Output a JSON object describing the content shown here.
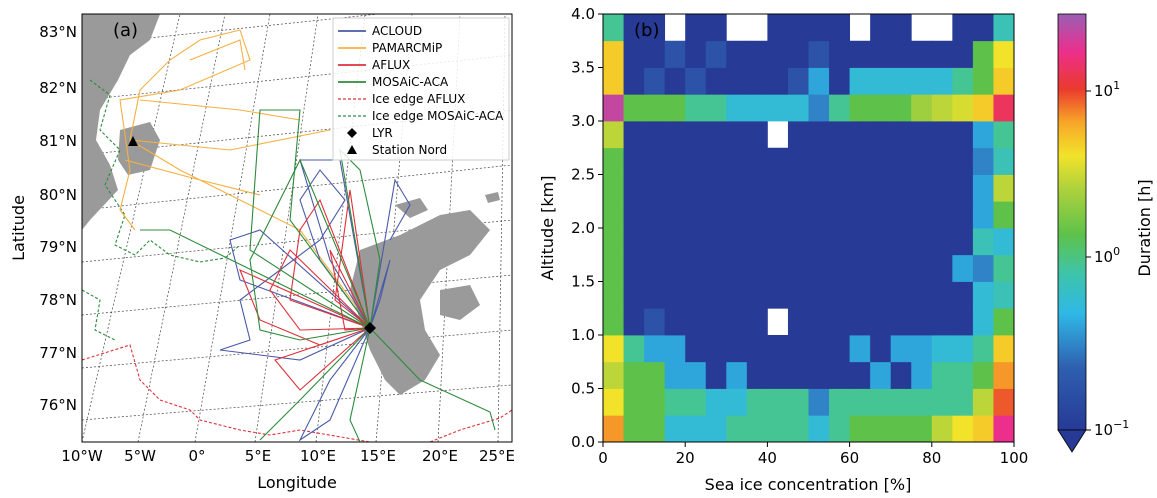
{
  "chart_data": [
    {
      "type": "map",
      "panel_label": "(a)",
      "xlabel": "Longitude",
      "ylabel": "Latitude",
      "lon_ticks": [
        "10°W",
        "5°W",
        "0°",
        "5°E",
        "10°E",
        "15°E",
        "20°E",
        "25°E"
      ],
      "lat_ticks": [
        "76°N",
        "77°N",
        "78°N",
        "79°N",
        "80°N",
        "81°N",
        "82°N",
        "83°N"
      ],
      "legend_position": "top-right",
      "legend": [
        {
          "label": "ACLOUD",
          "style": "line",
          "color": "#4a5aa8"
        },
        {
          "label": "PAMARCMiP",
          "style": "line",
          "color": "#f5b041"
        },
        {
          "label": "AFLUX",
          "style": "line",
          "color": "#e0303a"
        },
        {
          "label": "MOSAiC-ACA",
          "style": "line",
          "color": "#2e8b3d"
        },
        {
          "label": "Ice edge AFLUX",
          "style": "dashed",
          "color": "#e0303a"
        },
        {
          "label": "Ice edge MOSAiC-ACA",
          "style": "dashed",
          "color": "#2e8b3d"
        },
        {
          "label": "LYR",
          "style": "diamond",
          "color": "#000000"
        },
        {
          "label": "Station Nord",
          "style": "triangle",
          "color": "#000000"
        }
      ],
      "markers": [
        {
          "name": "LYR",
          "lon": 15.5,
          "lat": 78.2
        },
        {
          "name": "Station Nord",
          "lon": -16.7,
          "lat": 81.6
        }
      ]
    },
    {
      "type": "heatmap",
      "panel_label": "(b)",
      "xlabel": "Sea ice concentration [%]",
      "ylabel": "Altitude [km]",
      "colorbar_label": "Duration [h]",
      "colorbar_ticks": [
        "10^{-1}",
        "10^{0}",
        "10^{1}"
      ],
      "color_scale": "log",
      "xlim": [
        0,
        100
      ],
      "ylim": [
        0.0,
        4.0
      ],
      "x_ticks": [
        0,
        20,
        40,
        60,
        80,
        100
      ],
      "y_ticks": [
        0.0,
        0.5,
        1.0,
        1.5,
        2.0,
        2.5,
        3.0,
        3.5,
        4.0
      ],
      "bin_width_x": 5,
      "bin_height_y": 0.25,
      "grid_note": "rows listed bottom (0.0-0.25 km) to top (3.75-4.0 km); columns 0-5% to 95-100%; values are log10(duration h); null = no data",
      "cells_log10": [
        [
          0.8,
          0.0,
          0.0,
          -0.4,
          -0.4,
          -0.4,
          -0.2,
          -0.2,
          -0.2,
          -0.2,
          -0.4,
          -0.2,
          0.0,
          0.0,
          0.0,
          0.0,
          0.3,
          0.5,
          0.6,
          1.3
        ],
        [
          0.5,
          0.0,
          0.0,
          -0.2,
          -0.2,
          -0.4,
          -0.4,
          -0.2,
          -0.2,
          -0.2,
          -0.6,
          -0.2,
          -0.2,
          -0.2,
          -0.2,
          -0.2,
          -0.2,
          -0.2,
          0.3,
          1.0
        ],
        [
          0.3,
          0.0,
          0.0,
          -0.5,
          -0.5,
          -1,
          -0.5,
          -1,
          -1,
          -1,
          -1,
          -1,
          -1,
          -0.5,
          -1,
          -0.5,
          -0.2,
          -0.2,
          0.0,
          0.8
        ],
        [
          0.5,
          -0.2,
          -0.5,
          -0.5,
          -1,
          -1,
          -1,
          -1,
          -1,
          -1,
          -1,
          -1,
          -0.5,
          -1,
          -0.5,
          -0.5,
          -0.4,
          -0.4,
          -0.2,
          0.6
        ],
        [
          0.0,
          -1,
          -0.8,
          -1,
          -1,
          -1,
          -1,
          -1,
          null,
          -1,
          -1,
          -1,
          -1,
          -1,
          -1,
          -1,
          -1,
          -1,
          -0.4,
          0.0
        ],
        [
          0.0,
          -1,
          -1,
          -1,
          -1,
          -1,
          -1,
          -1,
          -1,
          -1,
          -1,
          -1,
          -1,
          -1,
          -1,
          -1,
          -1,
          -1,
          -0.4,
          -0.3
        ],
        [
          0.0,
          -1,
          -1,
          -1,
          -1,
          -1,
          -1,
          -1,
          -1,
          -1,
          -1,
          -1,
          -1,
          -1,
          -1,
          -1,
          -1,
          -0.5,
          -0.6,
          -0.2
        ],
        [
          0.0,
          -1,
          -1,
          -1,
          -1,
          -1,
          -1,
          -1,
          -1,
          -1,
          -1,
          -1,
          -1,
          -1,
          -1,
          -1,
          -1,
          -1,
          -0.3,
          -0.4
        ],
        [
          0.0,
          -1,
          -1,
          -1,
          -1,
          -1,
          -1,
          -1,
          -1,
          -1,
          -1,
          -1,
          -1,
          -1,
          -1,
          -1,
          -1,
          -1,
          -0.5,
          0.0
        ],
        [
          0.0,
          -1,
          -1,
          -1,
          -1,
          -1,
          -1,
          -1,
          -1,
          -1,
          -1,
          -1,
          -1,
          -1,
          -1,
          -1,
          -1,
          -1,
          -0.5,
          0.3
        ],
        [
          0.0,
          -1,
          -1,
          -1,
          -1,
          -1,
          -1,
          -1,
          -1,
          -1,
          -1,
          -1,
          -1,
          -1,
          -1,
          -1,
          -1,
          -1,
          -0.6,
          -0.3
        ],
        [
          0.3,
          -1,
          -1,
          -1,
          -1,
          -1,
          -1,
          -1,
          null,
          -1,
          -1,
          -1,
          -1,
          -1,
          -1,
          -1,
          -1,
          -1,
          -0.5,
          -0.2
        ],
        [
          1.4,
          0.0,
          0.0,
          0.0,
          -0.2,
          -0.2,
          -0.4,
          -0.4,
          -0.4,
          -0.4,
          -0.6,
          -0.2,
          0.0,
          0.0,
          0.0,
          0.2,
          0.3,
          0.4,
          0.6,
          1.2
        ],
        [
          0.6,
          -1,
          -0.8,
          -1,
          -0.8,
          -1,
          -1,
          -1,
          -1,
          -0.8,
          -0.5,
          -1,
          -0.4,
          -0.4,
          -0.4,
          -0.4,
          -0.4,
          -0.2,
          0.0,
          0.6
        ],
        [
          0.6,
          -1,
          -1,
          -0.8,
          -1,
          -0.8,
          -1,
          -1,
          -1,
          -1,
          -0.8,
          -1,
          -1,
          -1,
          -1,
          -1,
          -1,
          -1,
          0.0,
          0.5
        ],
        [
          -0.2,
          -1,
          -1,
          null,
          -1,
          -1,
          null,
          null,
          -1,
          -1,
          -1,
          -1,
          null,
          -1,
          -1,
          null,
          null,
          -1,
          -1,
          -0.3
        ]
      ]
    }
  ]
}
